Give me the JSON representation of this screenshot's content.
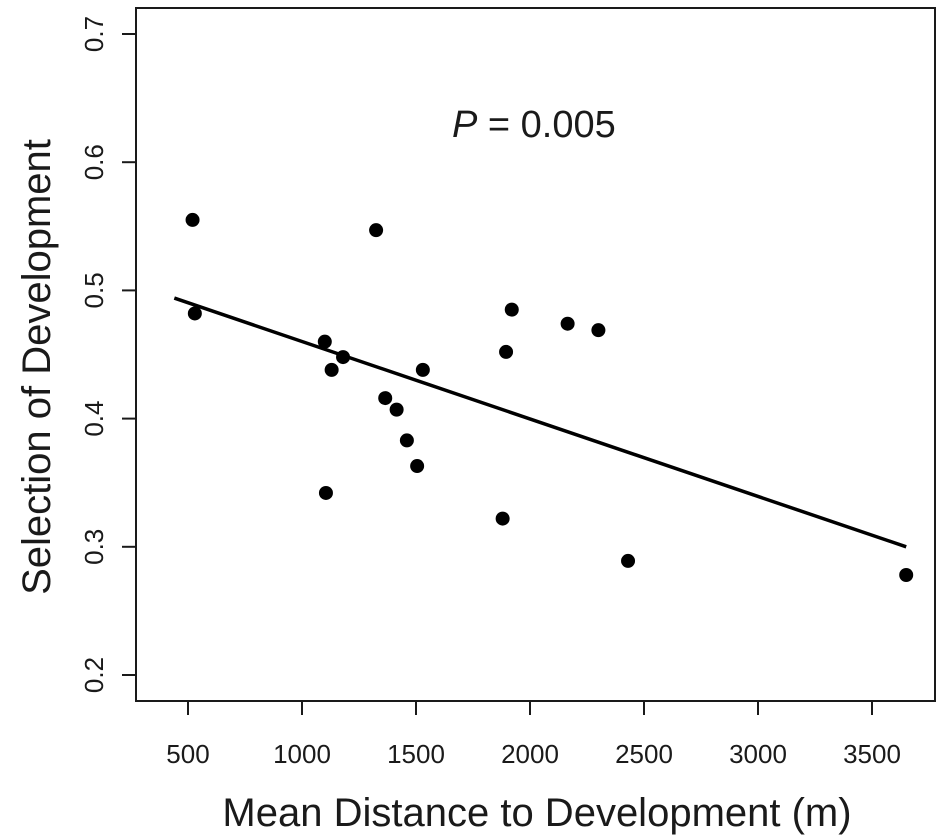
{
  "chart_data": {
    "type": "scatter",
    "title": "",
    "annotation": {
      "italic": "P",
      "text": " = 0.005"
    },
    "xlabel": "Mean Distance to Development (m)",
    "ylabel": "Selection of Development",
    "xlim": [
      0,
      3700
    ],
    "ylim": [
      0.18,
      0.72
    ],
    "xticks": [
      500,
      1000,
      1500,
      2000,
      2500,
      3000,
      3500
    ],
    "yticks": [
      0.2,
      0.3,
      0.4,
      0.5,
      0.6,
      0.7
    ],
    "xtick_labels": [
      "500",
      "1000",
      "1500",
      "2000",
      "2500",
      "3000",
      "3500"
    ],
    "ytick_labels": [
      "0.2",
      "0.3",
      "0.4",
      "0.5",
      "0.6",
      "0.7"
    ],
    "grid": false,
    "points": [
      {
        "x": 520,
        "y": 0.555
      },
      {
        "x": 530,
        "y": 0.482
      },
      {
        "x": 1100,
        "y": 0.46
      },
      {
        "x": 1105,
        "y": 0.342
      },
      {
        "x": 1130,
        "y": 0.438
      },
      {
        "x": 1180,
        "y": 0.448
      },
      {
        "x": 1325,
        "y": 0.547
      },
      {
        "x": 1365,
        "y": 0.416
      },
      {
        "x": 1415,
        "y": 0.407
      },
      {
        "x": 1460,
        "y": 0.383
      },
      {
        "x": 1505,
        "y": 0.363
      },
      {
        "x": 1530,
        "y": 0.438
      },
      {
        "x": 1880,
        "y": 0.322
      },
      {
        "x": 1895,
        "y": 0.452
      },
      {
        "x": 1920,
        "y": 0.485
      },
      {
        "x": 2165,
        "y": 0.474
      },
      {
        "x": 2300,
        "y": 0.469
      },
      {
        "x": 2430,
        "y": 0.289
      },
      {
        "x": 3650,
        "y": 0.278
      }
    ],
    "fit_line": {
      "x": [
        440,
        3650
      ],
      "y": [
        0.494,
        0.3
      ]
    }
  }
}
